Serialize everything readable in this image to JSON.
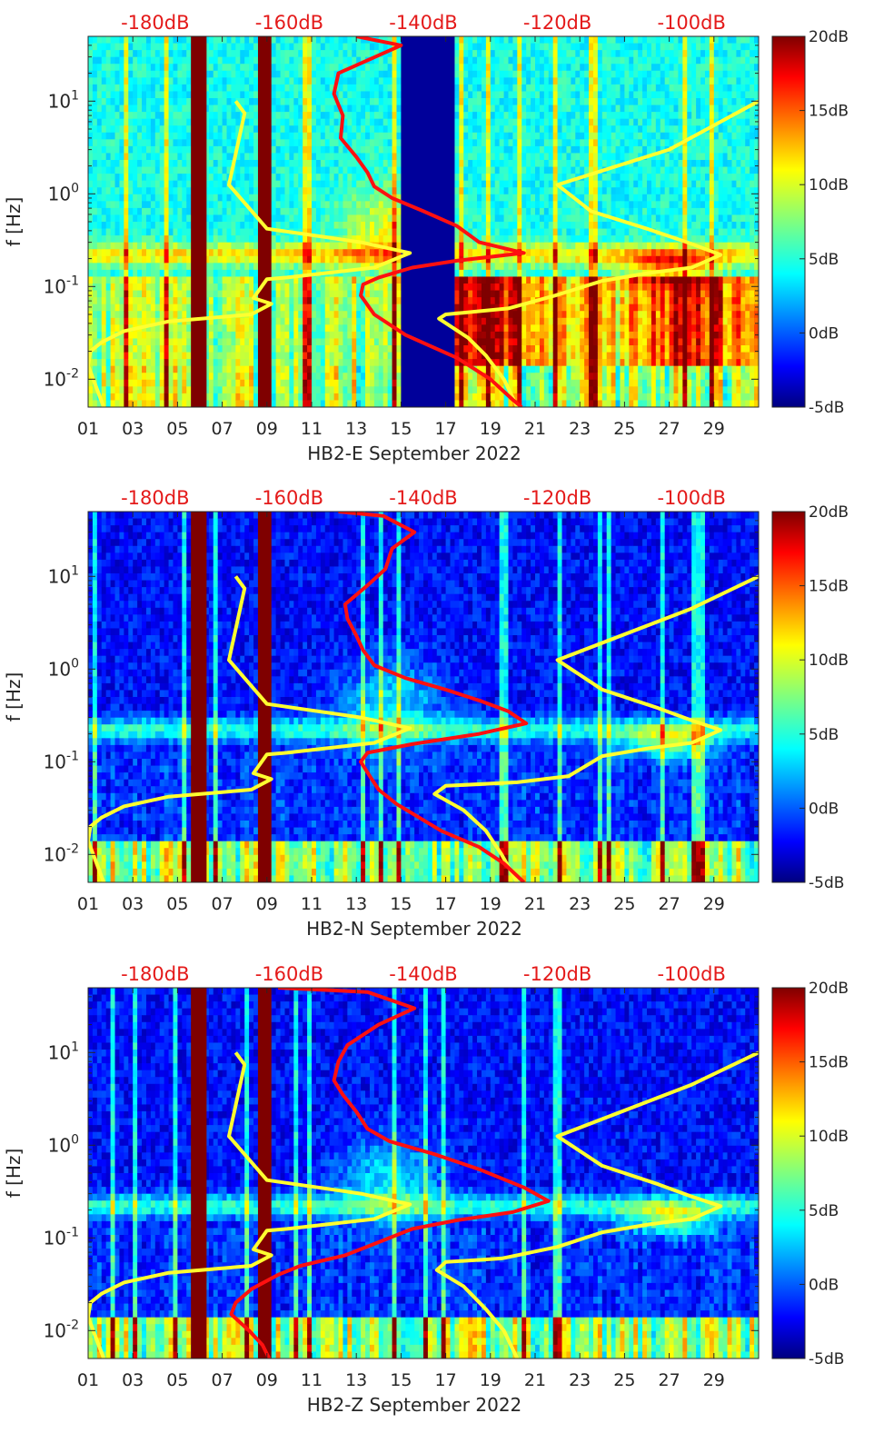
{
  "chart_data": [
    {
      "type": "heatmap",
      "xlabel": "HB2-E September 2022",
      "ylabel": "f [Hz]",
      "x_ticks": [
        "01",
        "03",
        "05",
        "07",
        "09",
        "11",
        "13",
        "15",
        "17",
        "19",
        "21",
        "23",
        "25",
        "27",
        "29"
      ],
      "y_ticks": [
        "10-2",
        "10-1",
        "100",
        "101"
      ],
      "top_ticks": [
        "-180dB",
        "-160dB",
        "-140dB",
        "-120dB",
        "-100dB"
      ],
      "colorbar_ticks": [
        "20dB",
        "15dB",
        "10dB",
        "5dB",
        "0dB",
        "-5dB"
      ],
      "xlim_days": [
        1,
        31
      ],
      "ylim_hz": [
        0.005,
        50
      ],
      "y_scale": "log",
      "top_axis_db_range": [
        -190,
        -90
      ],
      "gap_days": [
        [
          5.6,
          6.3
        ],
        [
          8.6,
          9.2
        ],
        [
          15.0,
          17.4
        ]
      ],
      "series": [
        {
          "color": "#ffff30",
          "points": [
            [
              7.6,
              10
            ],
            [
              8.0,
              7.4
            ],
            [
              7.3,
              1.25
            ],
            [
              9.0,
              0.42
            ],
            [
              11.3,
              0.35
            ],
            [
              13.2,
              0.3
            ],
            [
              15.4,
              0.23
            ],
            [
              13.8,
              0.16
            ],
            [
              9.9,
              0.125
            ],
            [
              9.0,
              0.12
            ],
            [
              8.4,
              0.075
            ],
            [
              9.2,
              0.065
            ],
            [
              8.3,
              0.05
            ],
            [
              4.6,
              0.042
            ],
            [
              2.6,
              0.033
            ],
            [
              1.6,
              0.025
            ],
            [
              1.1,
              0.02
            ],
            [
              1.0,
              0.014
            ],
            [
              1.3,
              0.009
            ],
            [
              1.7,
              0.005
            ]
          ]
        },
        {
          "color": "#ffff30",
          "points": [
            [
              31,
              10
            ],
            [
              27,
              3
            ],
            [
              22,
              1.25
            ],
            [
              23.5,
              0.65
            ],
            [
              26,
              0.42
            ],
            [
              27.8,
              0.3
            ],
            [
              29.3,
              0.22
            ],
            [
              28,
              0.16
            ],
            [
              26.1,
              0.14
            ],
            [
              24,
              0.115
            ],
            [
              21.9,
              0.08
            ],
            [
              19.8,
              0.058
            ],
            [
              17,
              0.05
            ],
            [
              16.7,
              0.045
            ],
            [
              18,
              0.028
            ],
            [
              18.8,
              0.018
            ],
            [
              19.6,
              0.01
            ],
            [
              20.2,
              0.005
            ]
          ]
        },
        {
          "color": "#ff1010",
          "points": [
            [
              13,
              50
            ],
            [
              15,
              40
            ],
            [
              12.2,
              20
            ],
            [
              12,
              12
            ],
            [
              12.4,
              7
            ],
            [
              12.3,
              4
            ],
            [
              13,
              2.5
            ],
            [
              13.5,
              1.7
            ],
            [
              13.8,
              1.2
            ],
            [
              14.6,
              0.9
            ],
            [
              16,
              0.65
            ],
            [
              17.5,
              0.45
            ],
            [
              18.5,
              0.3
            ],
            [
              20.5,
              0.23
            ],
            [
              17.5,
              0.19
            ],
            [
              15.5,
              0.16
            ],
            [
              14,
              0.125
            ],
            [
              13.3,
              0.105
            ],
            [
              13.2,
              0.08
            ],
            [
              13.8,
              0.05
            ],
            [
              15.2,
              0.03
            ],
            [
              17.5,
              0.017
            ],
            [
              19,
              0.01
            ],
            [
              20,
              0.006
            ],
            [
              20.4,
              0.005
            ]
          ]
        }
      ]
    },
    {
      "type": "heatmap",
      "xlabel": "HB2-N September 2022",
      "ylabel": "f [Hz]",
      "x_ticks": [
        "01",
        "03",
        "05",
        "07",
        "09",
        "11",
        "13",
        "15",
        "17",
        "19",
        "21",
        "23",
        "25",
        "27",
        "29"
      ],
      "y_ticks": [
        "10-2",
        "10-1",
        "100",
        "101"
      ],
      "top_ticks": [
        "-180dB",
        "-160dB",
        "-140dB",
        "-120dB",
        "-100dB"
      ],
      "colorbar_ticks": [
        "20dB",
        "15dB",
        "10dB",
        "5dB",
        "0dB",
        "-5dB"
      ],
      "xlim_days": [
        1,
        31
      ],
      "ylim_hz": [
        0.005,
        50
      ],
      "y_scale": "log",
      "top_axis_db_range": [
        -190,
        -90
      ],
      "gap_days": [
        [
          5.6,
          6.3
        ],
        [
          8.6,
          9.2
        ]
      ],
      "series": [
        {
          "color": "#ffff30",
          "points": [
            [
              7.6,
              10
            ],
            [
              8.0,
              7.4
            ],
            [
              7.3,
              1.25
            ],
            [
              9.0,
              0.42
            ],
            [
              11.3,
              0.35
            ],
            [
              13.2,
              0.3
            ],
            [
              15.4,
              0.23
            ],
            [
              13.8,
              0.16
            ],
            [
              9.9,
              0.125
            ],
            [
              9.0,
              0.12
            ],
            [
              8.4,
              0.075
            ],
            [
              9.2,
              0.065
            ],
            [
              8.3,
              0.05
            ],
            [
              4.6,
              0.042
            ],
            [
              2.6,
              0.033
            ],
            [
              1.6,
              0.025
            ],
            [
              1.1,
              0.02
            ],
            [
              1.0,
              0.014
            ],
            [
              1.3,
              0.009
            ],
            [
              1.7,
              0.005
            ]
          ]
        },
        {
          "color": "#ffff30",
          "points": [
            [
              31,
              10
            ],
            [
              28,
              4.5
            ],
            [
              22,
              1.25
            ],
            [
              24,
              0.6
            ],
            [
              26.5,
              0.38
            ],
            [
              28,
              0.28
            ],
            [
              29.3,
              0.22
            ],
            [
              28,
              0.16
            ],
            [
              26.1,
              0.14
            ],
            [
              24,
              0.115
            ],
            [
              22.5,
              0.07
            ],
            [
              20.2,
              0.06
            ],
            [
              17,
              0.055
            ],
            [
              16.5,
              0.045
            ],
            [
              17.8,
              0.03
            ],
            [
              18.8,
              0.018
            ],
            [
              19.5,
              0.01
            ],
            [
              20.2,
              0.005
            ]
          ]
        },
        {
          "color": "#ff1010",
          "points": [
            [
              12.2,
              50
            ],
            [
              14.2,
              45
            ],
            [
              15.6,
              30
            ],
            [
              14.6,
              20
            ],
            [
              14.3,
              12
            ],
            [
              13.5,
              8
            ],
            [
              12.5,
              5
            ],
            [
              12.6,
              3.5
            ],
            [
              13,
              2.3
            ],
            [
              13.3,
              1.6
            ],
            [
              13.8,
              1.1
            ],
            [
              15.2,
              0.8
            ],
            [
              17,
              0.6
            ],
            [
              18.6,
              0.45
            ],
            [
              19.8,
              0.35
            ],
            [
              20.6,
              0.26
            ],
            [
              18.5,
              0.2
            ],
            [
              15.5,
              0.155
            ],
            [
              13.5,
              0.125
            ],
            [
              13.2,
              0.1
            ],
            [
              13.6,
              0.07
            ],
            [
              14,
              0.05
            ],
            [
              14.8,
              0.035
            ],
            [
              16.8,
              0.018
            ],
            [
              18.5,
              0.012
            ],
            [
              19.6,
              0.008
            ],
            [
              20.5,
              0.005
            ]
          ]
        }
      ]
    },
    {
      "type": "heatmap",
      "xlabel": "HB2-Z September 2022",
      "ylabel": "f [Hz]",
      "x_ticks": [
        "01",
        "03",
        "05",
        "07",
        "09",
        "11",
        "13",
        "15",
        "17",
        "19",
        "21",
        "23",
        "25",
        "27",
        "29"
      ],
      "y_ticks": [
        "10-2",
        "10-1",
        "100",
        "101"
      ],
      "top_ticks": [
        "-180dB",
        "-160dB",
        "-140dB",
        "-120dB",
        "-100dB"
      ],
      "colorbar_ticks": [
        "20dB",
        "15dB",
        "10dB",
        "5dB",
        "0dB",
        "-5dB"
      ],
      "xlim_days": [
        1,
        31
      ],
      "ylim_hz": [
        0.005,
        50
      ],
      "y_scale": "log",
      "top_axis_db_range": [
        -190,
        -90
      ],
      "gap_days": [
        [
          5.6,
          6.3
        ],
        [
          8.6,
          9.2
        ]
      ],
      "series": [
        {
          "color": "#ffff30",
          "points": [
            [
              7.6,
              10
            ],
            [
              8.0,
              7.4
            ],
            [
              7.3,
              1.25
            ],
            [
              9.0,
              0.42
            ],
            [
              11.3,
              0.35
            ],
            [
              13.2,
              0.3
            ],
            [
              15.4,
              0.23
            ],
            [
              13.8,
              0.16
            ],
            [
              9.9,
              0.125
            ],
            [
              9.0,
              0.12
            ],
            [
              8.4,
              0.075
            ],
            [
              9.2,
              0.065
            ],
            [
              8.3,
              0.05
            ],
            [
              4.6,
              0.042
            ],
            [
              2.6,
              0.033
            ],
            [
              1.6,
              0.025
            ],
            [
              1.1,
              0.02
            ],
            [
              1.0,
              0.014
            ],
            [
              1.3,
              0.009
            ],
            [
              1.7,
              0.005
            ]
          ]
        },
        {
          "color": "#ffff30",
          "points": [
            [
              31,
              10
            ],
            [
              28,
              4.5
            ],
            [
              22,
              1.25
            ],
            [
              24,
              0.6
            ],
            [
              26.5,
              0.38
            ],
            [
              28,
              0.28
            ],
            [
              29.3,
              0.22
            ],
            [
              28,
              0.16
            ],
            [
              26.1,
              0.14
            ],
            [
              24,
              0.115
            ],
            [
              22,
              0.08
            ],
            [
              19.5,
              0.06
            ],
            [
              17,
              0.055
            ],
            [
              16.6,
              0.045
            ],
            [
              17.8,
              0.03
            ],
            [
              18.8,
              0.017
            ],
            [
              19.6,
              0.01
            ],
            [
              20.2,
              0.005
            ]
          ]
        },
        {
          "color": "#ff1010",
          "points": [
            [
              9.5,
              50
            ],
            [
              13.5,
              45
            ],
            [
              15.6,
              30
            ],
            [
              14,
              20
            ],
            [
              12.6,
              12
            ],
            [
              12.2,
              8
            ],
            [
              12,
              5
            ],
            [
              12.4,
              3.5
            ],
            [
              13,
              2.3
            ],
            [
              13.5,
              1.5
            ],
            [
              14.5,
              1.1
            ],
            [
              16.5,
              0.8
            ],
            [
              18.5,
              0.55
            ],
            [
              20.5,
              0.35
            ],
            [
              21.6,
              0.25
            ],
            [
              20,
              0.19
            ],
            [
              17.5,
              0.155
            ],
            [
              15.5,
              0.125
            ],
            [
              14,
              0.09
            ],
            [
              12.5,
              0.065
            ],
            [
              10.5,
              0.05
            ],
            [
              9.5,
              0.04
            ],
            [
              8.3,
              0.028
            ],
            [
              7.6,
              0.02
            ],
            [
              7.4,
              0.015
            ],
            [
              8.2,
              0.01
            ],
            [
              8.8,
              0.007
            ],
            [
              9.1,
              0.005
            ]
          ]
        }
      ]
    }
  ]
}
